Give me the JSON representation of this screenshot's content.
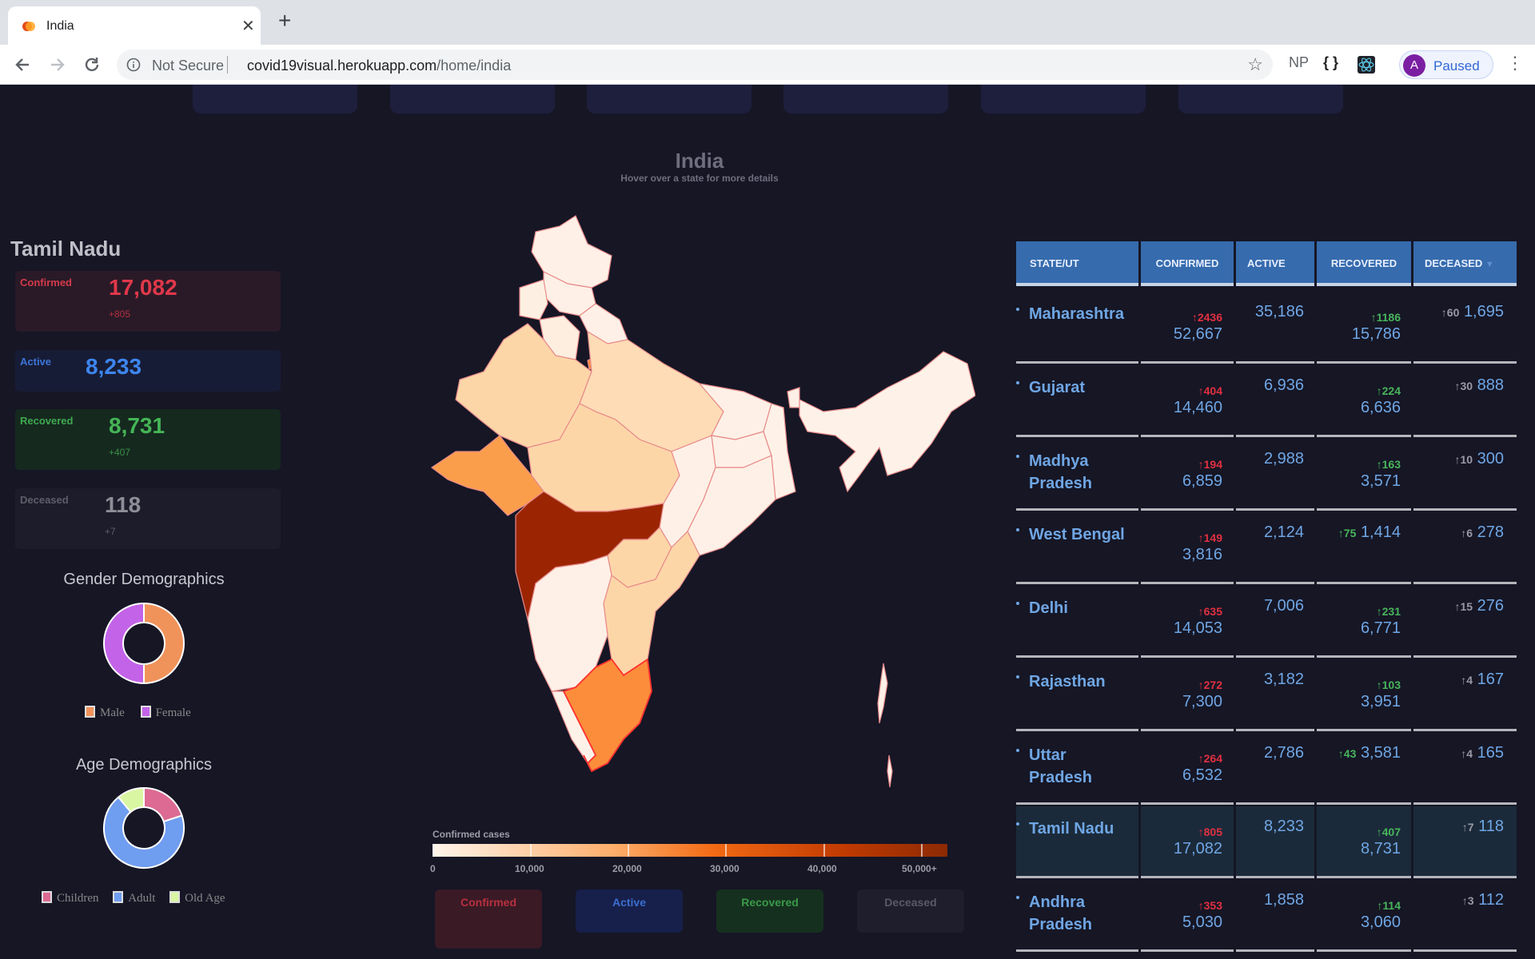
{
  "browser": {
    "tab_title": "India",
    "tab_close": "✕",
    "new_tab": "+",
    "not_secure": "Not Secure",
    "url_host": "covid19visual.herokuapp.com",
    "url_path": "/home/india",
    "ext_np": "NP",
    "ext_braces": "{ }",
    "profile_initial": "A",
    "profile_label": "Paused"
  },
  "map": {
    "title": "India",
    "subtitle": "Hover over a state for more details",
    "colorbar_title": "Confirmed cases",
    "colorbar_ticks": [
      "0",
      "10,000",
      "20,000",
      "30,000",
      "40,000",
      "50,000+"
    ],
    "buttons": [
      "Confirmed",
      "Active",
      "Recovered",
      "Deceased"
    ]
  },
  "state_panel": {
    "name": "Tamil Nadu",
    "confirmed": {
      "label": "Confirmed",
      "value": "17,082",
      "delta": "+805"
    },
    "active": {
      "label": "Active",
      "value": "8,233"
    },
    "recovered": {
      "label": "Recovered",
      "value": "8,731",
      "delta": "+407"
    },
    "deceased": {
      "label": "Deceased",
      "value": "118",
      "delta": "+7"
    }
  },
  "gender_chart": {
    "title": "Gender Demographics",
    "labels": [
      "Male",
      "Female"
    ],
    "values": [
      50,
      50
    ],
    "colors": [
      "#f0935a",
      "#c363e8"
    ]
  },
  "age_chart": {
    "title": "Age Demographics",
    "labels": [
      "Children",
      "Adult",
      "Old Age"
    ],
    "values": [
      20,
      69,
      11
    ],
    "colors": [
      "#dc6a92",
      "#6f9df0",
      "#d9f7a2"
    ]
  },
  "table": {
    "headers": [
      "STATE/UT",
      "CONFIRMED",
      "ACTIVE",
      "RECOVERED",
      "DECEASED"
    ],
    "sort_arrow": "▼",
    "rows": [
      {
        "name": "Maharashtra",
        "conf_delta": "2436",
        "confirmed": "52,667",
        "active": "35,186",
        "rec_delta": "1186",
        "recovered": "15,786",
        "dec_delta": "60",
        "deceased": "1,695"
      },
      {
        "name": "Gujarat",
        "conf_delta": "404",
        "confirmed": "14,460",
        "active": "6,936",
        "rec_delta": "224",
        "recovered": "6,636",
        "dec_delta": "30",
        "deceased": "888"
      },
      {
        "name": "Madhya Pradesh",
        "conf_delta": "194",
        "confirmed": "6,859",
        "active": "2,988",
        "rec_delta": "163",
        "recovered": "3,571",
        "dec_delta": "10",
        "deceased": "300"
      },
      {
        "name": "West Bengal",
        "conf_delta": "149",
        "confirmed": "3,816",
        "active": "2,124",
        "rec_delta": "75",
        "recovered": "1,414",
        "dec_delta": "6",
        "deceased": "278"
      },
      {
        "name": "Delhi",
        "conf_delta": "635",
        "confirmed": "14,053",
        "active": "7,006",
        "rec_delta": "231",
        "recovered": "6,771",
        "dec_delta": "15",
        "deceased": "276"
      },
      {
        "name": "Rajasthan",
        "conf_delta": "272",
        "confirmed": "7,300",
        "active": "3,182",
        "rec_delta": "103",
        "recovered": "3,951",
        "dec_delta": "4",
        "deceased": "167"
      },
      {
        "name": "Uttar Pradesh",
        "conf_delta": "264",
        "confirmed": "6,532",
        "active": "2,786",
        "rec_delta": "43",
        "recovered": "3,581",
        "dec_delta": "4",
        "deceased": "165"
      },
      {
        "name": "Tamil Nadu",
        "conf_delta": "805",
        "confirmed": "17,082",
        "active": "8,233",
        "rec_delta": "407",
        "recovered": "8,731",
        "dec_delta": "7",
        "deceased": "118"
      },
      {
        "name": "Andhra Pradesh",
        "conf_delta": "353",
        "confirmed": "5,030",
        "active": "1,858",
        "rec_delta": "114",
        "recovered": "3,060",
        "dec_delta": "3",
        "deceased": "112"
      }
    ]
  }
}
